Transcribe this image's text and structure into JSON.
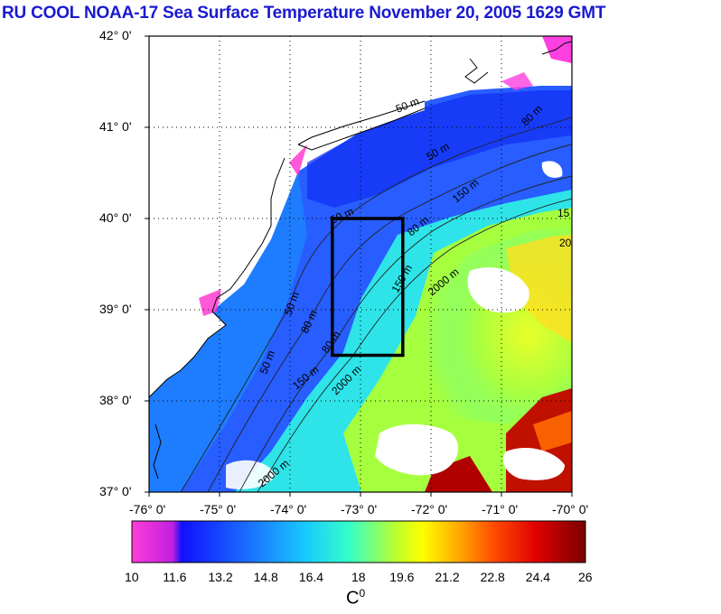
{
  "title": "RU COOL  NOAA-17 Sea Surface Temperature November 20, 2005 1629 GMT",
  "lat_labels": [
    "42° 0'",
    "41° 0'",
    "40° 0'",
    "39° 0'",
    "38° 0'",
    "37° 0'"
  ],
  "lon_labels": [
    "-76° 0'",
    "-75° 0'",
    "-74° 0'",
    "-73° 0'",
    "-72° 0'",
    "-71° 0'",
    "-70° 0'"
  ],
  "contour_labels": [
    "50 m",
    "50 m",
    "50 m",
    "50 m",
    "50 m",
    "80 m",
    "80 m",
    "80 m",
    "80 m",
    "150 m",
    "150 m",
    "150 m",
    "2000 m",
    "2000 m",
    "2000 m",
    "15",
    "20"
  ],
  "colorbar": {
    "ticks": [
      "10",
      "11.6",
      "13.2",
      "14.8",
      "16.4",
      "18",
      "19.6",
      "21.2",
      "22.8",
      "24.4",
      "26"
    ],
    "unit_base": "C",
    "unit_sup": "0",
    "min": 10,
    "max": 26
  },
  "study_box": {
    "lon_min": -73.4,
    "lon_max": -72.4,
    "lat_min": 38.5,
    "lat_max": 40.0
  }
}
